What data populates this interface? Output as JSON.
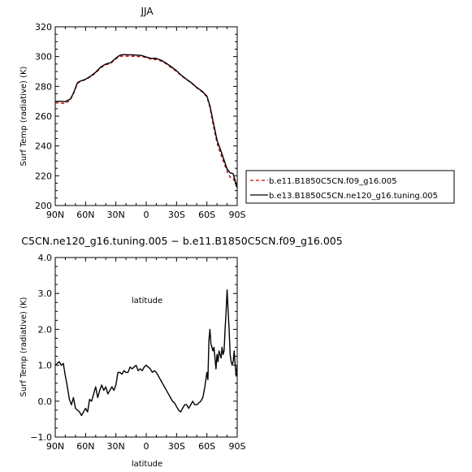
{
  "chart_data": [
    {
      "type": "line",
      "title": "JJA",
      "xlabel": "latitude",
      "ylabel": "Surf Temp (radiative) (K)",
      "xlim": [
        90,
        -90
      ],
      "ylim": [
        200,
        320
      ],
      "x_tick_labels": [
        "90N",
        "60N",
        "30N",
        "0",
        "30S",
        "60S",
        "90S"
      ],
      "x_tick_values": [
        90,
        60,
        30,
        0,
        -30,
        -60,
        -90
      ],
      "y_tick_values": [
        200,
        220,
        240,
        260,
        280,
        300,
        320
      ],
      "legend_position": "right",
      "series": [
        {
          "name": "b.e11.B1850C5CN.f09_g16.005",
          "color": "#cc0000",
          "style": "dashed",
          "x": [
            90,
            85,
            80,
            75,
            72,
            68,
            65,
            62,
            60,
            55,
            50,
            45,
            40,
            35,
            30,
            27,
            25,
            22,
            20,
            15,
            10,
            5,
            0,
            -5,
            -10,
            -15,
            -20,
            -25,
            -30,
            -35,
            -40,
            -45,
            -50,
            -55,
            -60,
            -63,
            -66,
            -70,
            -75,
            -80,
            -83,
            -86,
            -90
          ],
          "y": [
            269.0,
            268.8,
            268.6,
            271.0,
            275.0,
            282.0,
            283.5,
            284.0,
            284.6,
            286.5,
            289.0,
            292.5,
            294.5,
            295.5,
            298.5,
            300.0,
            300.2,
            300.5,
            300.3,
            300.3,
            300.1,
            300.0,
            299.5,
            298.2,
            298.0,
            297.0,
            295.0,
            292.5,
            290.0,
            287.0,
            284.5,
            282.0,
            279.0,
            276.5,
            273.0,
            266.0,
            255.0,
            242.0,
            232.0,
            223.0,
            219.0,
            218.5,
            211.5
          ]
        },
        {
          "name": "b.e13.B1850C5CN.ne120_g16.tuning.005",
          "color": "#000000",
          "style": "solid",
          "x": [
            90,
            85,
            80,
            75,
            72,
            68,
            65,
            62,
            60,
            55,
            50,
            45,
            40,
            35,
            30,
            27,
            25,
            22,
            20,
            15,
            10,
            5,
            0,
            -5,
            -10,
            -15,
            -20,
            -25,
            -30,
            -35,
            -40,
            -45,
            -50,
            -55,
            -60,
            -63,
            -66,
            -70,
            -75,
            -80,
            -83,
            -86,
            -90
          ],
          "y": [
            270.0,
            270.0,
            269.8,
            271.5,
            275.5,
            282.5,
            283.6,
            284.3,
            284.8,
            286.9,
            289.5,
            293.0,
            295.0,
            296.0,
            299.0,
            300.5,
            301.1,
            301.4,
            301.2,
            301.2,
            301.0,
            300.8,
            299.7,
            298.8,
            298.8,
            297.5,
            295.5,
            293.0,
            290.5,
            287.3,
            284.7,
            282.3,
            279.3,
            276.9,
            273.5,
            267.0,
            257.0,
            244.0,
            234.5,
            224.5,
            222.0,
            221.3,
            212.0
          ]
        }
      ]
    },
    {
      "type": "line",
      "title": "C5CN.ne120_g16.tuning.005 − b.e11.B1850C5CN.f09_g16.005",
      "xlabel": "latitude",
      "ylabel": "Surf Temp (radiative) (K)",
      "xlim": [
        90,
        -90
      ],
      "ylim": [
        -1.0,
        4.0
      ],
      "x_tick_labels": [
        "90N",
        "60N",
        "30N",
        "0",
        "30S",
        "60S",
        "90S"
      ],
      "x_tick_values": [
        90,
        60,
        30,
        0,
        -30,
        -60,
        -90
      ],
      "y_tick_labels": [
        "−1.0",
        "0.0",
        "1.0",
        "2.0",
        "3.0",
        "4.0"
      ],
      "y_tick_values": [
        -1.0,
        0.0,
        1.0,
        2.0,
        3.0,
        4.0
      ],
      "series": [
        {
          "color": "#000000",
          "style": "solid",
          "x": [
            90,
            88,
            86,
            84,
            82,
            80,
            78,
            76,
            74,
            72,
            70,
            68,
            66,
            64,
            62,
            60,
            58,
            56,
            54,
            52,
            50,
            48,
            46,
            44,
            42,
            40,
            38,
            36,
            34,
            32,
            30,
            28,
            26,
            24,
            22,
            20,
            18,
            16,
            14,
            12,
            10,
            8,
            6,
            4,
            2,
            0,
            -2,
            -4,
            -6,
            -8,
            -10,
            -12,
            -14,
            -16,
            -18,
            -20,
            -22,
            -24,
            -26,
            -28,
            -30,
            -32,
            -34,
            -36,
            -38,
            -40,
            -42,
            -44,
            -46,
            -48,
            -50,
            -52,
            -54,
            -56,
            -58,
            -60,
            -61,
            -62,
            -63,
            -64,
            -65,
            -66,
            -67,
            -68,
            -69,
            -70,
            -71,
            -72,
            -73,
            -74,
            -75,
            -76,
            -77,
            -78,
            -79,
            -80,
            -81,
            -82,
            -83,
            -84,
            -85,
            -86,
            -87,
            -88,
            -89,
            -90
          ],
          "y": [
            1.0,
            1.05,
            1.1,
            1.0,
            1.05,
            0.7,
            0.4,
            0.05,
            -0.1,
            0.1,
            -0.2,
            -0.25,
            -0.3,
            -0.4,
            -0.3,
            -0.2,
            -0.3,
            0.05,
            0.0,
            0.2,
            0.4,
            0.1,
            0.3,
            0.45,
            0.3,
            0.4,
            0.2,
            0.3,
            0.4,
            0.3,
            0.45,
            0.8,
            0.8,
            0.75,
            0.85,
            0.8,
            0.8,
            0.95,
            0.9,
            0.95,
            1.0,
            0.85,
            0.9,
            0.85,
            0.95,
            1.0,
            0.95,
            0.9,
            0.8,
            0.85,
            0.8,
            0.7,
            0.6,
            0.5,
            0.4,
            0.3,
            0.2,
            0.1,
            0.0,
            -0.05,
            -0.15,
            -0.25,
            -0.3,
            -0.2,
            -0.1,
            -0.1,
            -0.2,
            -0.1,
            0.0,
            -0.1,
            -0.1,
            -0.05,
            0.0,
            0.1,
            0.4,
            0.8,
            0.6,
            1.7,
            2.0,
            1.6,
            1.5,
            1.4,
            1.5,
            1.2,
            0.9,
            1.3,
            1.1,
            1.4,
            1.3,
            1.2,
            1.5,
            1.3,
            1.4,
            2.0,
            2.5,
            3.1,
            2.5,
            2.0,
            1.3,
            1.1,
            1.0,
            1.1,
            1.4,
            1.0,
            0.7,
            1.0
          ]
        }
      ]
    }
  ]
}
